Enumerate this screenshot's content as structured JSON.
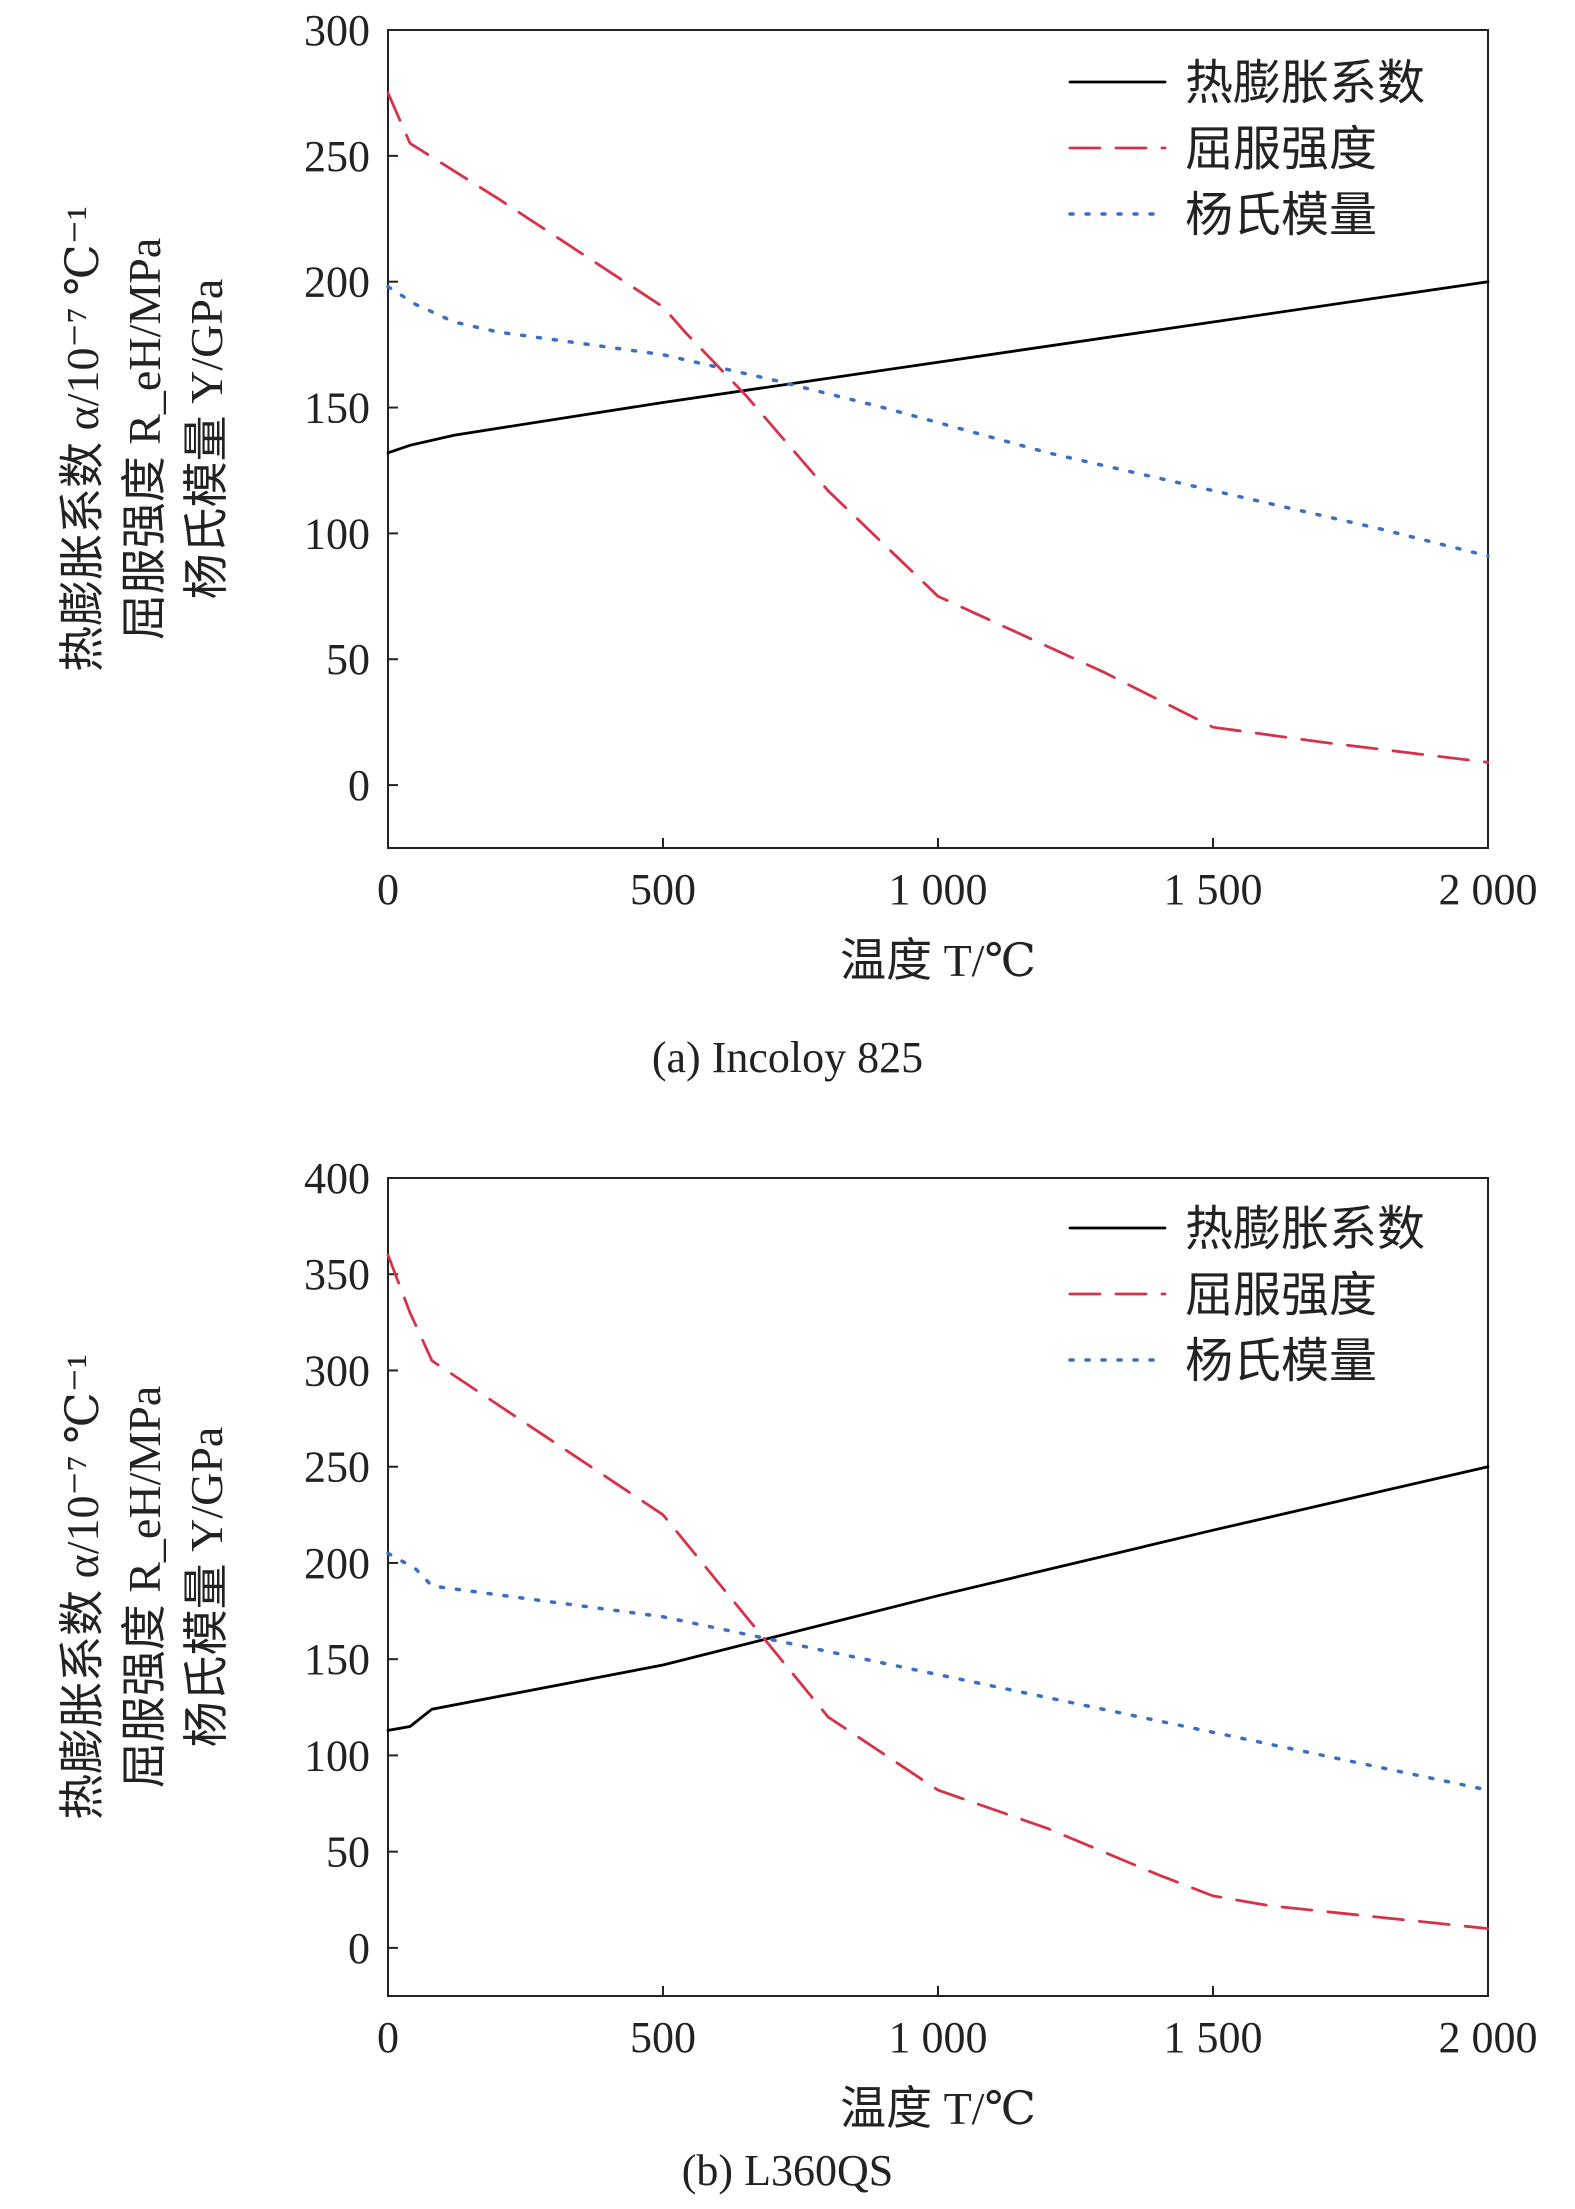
{
  "chart_data": [
    {
      "type": "line",
      "caption": "(a) Incoloy 825",
      "xlabel": "温度 T/℃",
      "ylabel_lines": [
        "热膨胀系数 α/10⁻⁷ ℃⁻¹",
        "屈服强度 R_eH/MPa",
        "杨氏模量 Y/GPa"
      ],
      "xlim": [
        0,
        2000
      ],
      "ylim": [
        -25,
        300
      ],
      "xticks": [
        0,
        500,
        1000,
        1500,
        2000
      ],
      "xtick_labels": [
        "0",
        "500",
        "1 000",
        "1 500",
        "2 000"
      ],
      "yticks": [
        0,
        50,
        100,
        150,
        200,
        250,
        300
      ],
      "ytick_labels": [
        "0",
        "50",
        "100",
        "150",
        "200",
        "250",
        "300"
      ],
      "grid": false,
      "legend_position": "top-right",
      "series": [
        {
          "name": "热膨胀系数",
          "color": "#000000",
          "style": "solid",
          "x": [
            0,
            40,
            120,
            500,
            1000,
            1500,
            2000
          ],
          "y": [
            132,
            135,
            139,
            152,
            168,
            184,
            200
          ]
        },
        {
          "name": "屈服强度",
          "color": "#d6334a",
          "style": "dashed",
          "x": [
            0,
            40,
            200,
            500,
            540,
            650,
            800,
            1000,
            1100,
            1300,
            1500,
            1700,
            2000
          ],
          "y": [
            275,
            255,
            233,
            190,
            180,
            155,
            117,
            75,
            65,
            45,
            23,
            17,
            9
          ]
        },
        {
          "name": "杨氏模量",
          "color": "#3a6fc2",
          "style": "dotted",
          "x": [
            0,
            50,
            120,
            200,
            500,
            700,
            900,
            1200,
            1500,
            1800,
            2000
          ],
          "y": [
            198,
            191,
            184,
            180,
            171,
            161,
            150,
            132,
            117,
            102,
            91
          ]
        }
      ]
    },
    {
      "type": "line",
      "caption": "(b) L360QS",
      "xlabel": "温度 T/℃",
      "ylabel_lines": [
        "热膨胀系数 α/10⁻⁷ ℃⁻¹",
        "屈服强度 R_eH/MPa",
        "杨氏模量 Y/GPa"
      ],
      "xlim": [
        0,
        2000
      ],
      "ylim": [
        -25,
        400
      ],
      "xticks": [
        0,
        500,
        1000,
        1500,
        2000
      ],
      "xtick_labels": [
        "0",
        "500",
        "1 000",
        "1 500",
        "2 000"
      ],
      "yticks": [
        0,
        50,
        100,
        150,
        200,
        250,
        300,
        350,
        400
      ],
      "ytick_labels": [
        "0",
        "50",
        "100",
        "150",
        "200",
        "250",
        "300",
        "350",
        "400"
      ],
      "grid": false,
      "legend_position": "top-right",
      "series": [
        {
          "name": "热膨胀系数",
          "color": "#000000",
          "style": "solid",
          "x": [
            0,
            40,
            80,
            500,
            1000,
            1500,
            2000
          ],
          "y": [
            113,
            115,
            124,
            147,
            183,
            217,
            250
          ]
        },
        {
          "name": "屈服强度",
          "color": "#d6334a",
          "style": "dashed",
          "x": [
            0,
            40,
            80,
            500,
            600,
            800,
            1000,
            1200,
            1400,
            1500,
            1600,
            1800,
            2000
          ],
          "y": [
            360,
            330,
            305,
            225,
            190,
            120,
            82,
            62,
            38,
            27,
            22,
            16,
            10
          ]
        },
        {
          "name": "杨氏模量",
          "color": "#3a6fc2",
          "style": "dotted",
          "x": [
            0,
            50,
            80,
            500,
            1000,
            1500,
            2000
          ],
          "y": [
            205,
            197,
            188,
            172,
            142,
            112,
            82
          ]
        }
      ]
    }
  ]
}
